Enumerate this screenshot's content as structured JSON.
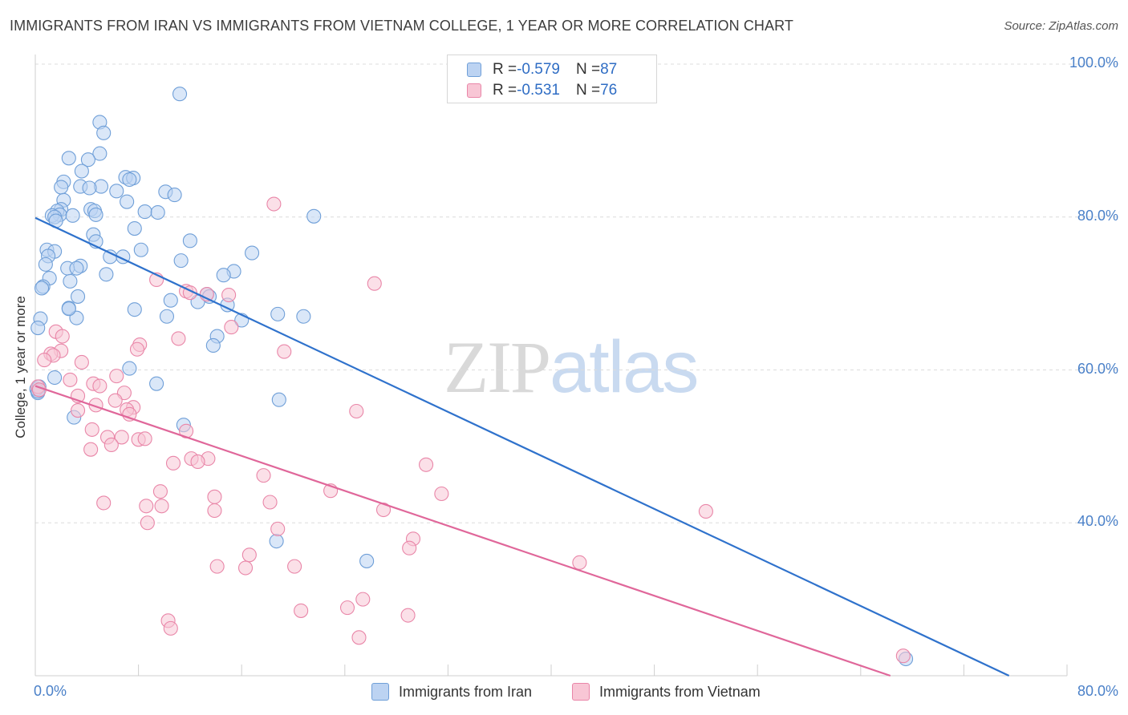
{
  "header": {
    "title": "IMMIGRANTS FROM IRAN VS IMMIGRANTS FROM VIETNAM COLLEGE, 1 YEAR OR MORE CORRELATION CHART",
    "source": "Source: ZipAtlas.com"
  },
  "watermark": {
    "zip": "ZIP",
    "atlas": "atlas"
  },
  "stats_legend": {
    "rows": [
      {
        "r_label": "R = ",
        "r_value": "-0.579",
        "n_label": "N = ",
        "n_value": "87",
        "color": "#6f9fd8",
        "fill": "#bcd3f2"
      },
      {
        "r_label": "R = ",
        "r_value": "-0.531",
        "n_label": "N = ",
        "n_value": "76",
        "color": "#e986a8",
        "fill": "#f8c6d5"
      }
    ]
  },
  "chart_data": {
    "type": "scatter",
    "ylabel": "College, 1 year or more",
    "xlim": [
      0,
      80
    ],
    "ylim": [
      20,
      100
    ],
    "x_tick_labels": [
      "0.0%",
      "80.0%"
    ],
    "y_ticks": [
      {
        "value": 100,
        "label": "100.0%"
      },
      {
        "value": 80,
        "label": "80.0%"
      },
      {
        "value": 60,
        "label": "60.0%"
      },
      {
        "value": 40,
        "label": "40.0%"
      }
    ],
    "grid": "horizontal dashed",
    "legend_placement": "bottom-center",
    "series": [
      {
        "name": "Immigrants from Iran",
        "color": "#6f9fd8",
        "fill": "#bcd3f2",
        "trend": {
          "x": [
            0,
            75.5
          ],
          "y": [
            79.9,
            20.0
          ]
        },
        "points": [
          [
            11.2,
            96.1
          ],
          [
            5.0,
            92.4
          ],
          [
            5.3,
            91.0
          ],
          [
            5.0,
            88.3
          ],
          [
            2.6,
            87.7
          ],
          [
            4.1,
            87.5
          ],
          [
            3.6,
            86.0
          ],
          [
            7.0,
            85.2
          ],
          [
            7.6,
            85.1
          ],
          [
            7.3,
            84.9
          ],
          [
            2.2,
            84.6
          ],
          [
            5.1,
            84.0
          ],
          [
            3.5,
            84.0
          ],
          [
            4.2,
            83.8
          ],
          [
            2.0,
            83.9
          ],
          [
            6.3,
            83.4
          ],
          [
            10.1,
            83.3
          ],
          [
            10.8,
            82.9
          ],
          [
            2.2,
            82.2
          ],
          [
            7.1,
            82.0
          ],
          [
            4.3,
            81.0
          ],
          [
            2.0,
            81.0
          ],
          [
            1.7,
            80.8
          ],
          [
            4.6,
            80.8
          ],
          [
            8.5,
            80.7
          ],
          [
            9.5,
            80.6
          ],
          [
            1.9,
            80.3
          ],
          [
            2.9,
            80.2
          ],
          [
            4.7,
            80.3
          ],
          [
            1.3,
            80.2
          ],
          [
            1.5,
            80.0
          ],
          [
            21.6,
            80.1
          ],
          [
            1.6,
            79.5
          ],
          [
            7.7,
            78.5
          ],
          [
            4.5,
            77.7
          ],
          [
            12.0,
            76.9
          ],
          [
            4.7,
            76.8
          ],
          [
            0.9,
            75.7
          ],
          [
            1.5,
            75.5
          ],
          [
            8.2,
            75.7
          ],
          [
            16.8,
            75.3
          ],
          [
            1.0,
            74.9
          ],
          [
            5.8,
            74.8
          ],
          [
            6.8,
            74.8
          ],
          [
            11.3,
            74.3
          ],
          [
            0.8,
            73.8
          ],
          [
            3.5,
            73.6
          ],
          [
            2.5,
            73.3
          ],
          [
            3.2,
            73.3
          ],
          [
            15.4,
            72.9
          ],
          [
            14.6,
            72.4
          ],
          [
            5.5,
            72.5
          ],
          [
            1.1,
            72.0
          ],
          [
            2.7,
            71.6
          ],
          [
            0.6,
            70.9
          ],
          [
            0.5,
            70.7
          ],
          [
            13.3,
            69.9
          ],
          [
            3.3,
            69.6
          ],
          [
            10.5,
            69.1
          ],
          [
            12.6,
            68.9
          ],
          [
            14.9,
            68.5
          ],
          [
            7.7,
            67.9
          ],
          [
            2.6,
            68.1
          ],
          [
            18.8,
            67.3
          ],
          [
            20.8,
            67.0
          ],
          [
            10.2,
            67.0
          ],
          [
            3.2,
            66.8
          ],
          [
            0.4,
            66.7
          ],
          [
            16.0,
            66.5
          ],
          [
            0.2,
            65.5
          ],
          [
            14.1,
            64.4
          ],
          [
            13.8,
            63.2
          ],
          [
            7.3,
            60.2
          ],
          [
            1.5,
            59.0
          ],
          [
            9.4,
            58.2
          ],
          [
            0.2,
            57.0
          ],
          [
            18.9,
            56.1
          ],
          [
            3.0,
            53.8
          ],
          [
            11.5,
            52.8
          ],
          [
            18.7,
            37.6
          ],
          [
            25.7,
            35.0
          ],
          [
            67.5,
            22.2
          ],
          [
            0.1,
            57.5
          ],
          [
            0.3,
            57.8
          ],
          [
            0.2,
            57.2
          ],
          [
            2.6,
            68.0
          ],
          [
            13.5,
            69.6
          ]
        ]
      },
      {
        "name": "Immigrants from Vietnam",
        "color": "#e986a8",
        "fill": "#f8c6d5",
        "trend": {
          "x": [
            0,
            66.3
          ],
          "y": [
            57.9,
            20.0
          ]
        },
        "points": [
          [
            18.5,
            81.7
          ],
          [
            9.4,
            71.8
          ],
          [
            26.3,
            71.3
          ],
          [
            11.7,
            70.3
          ],
          [
            13.3,
            69.9
          ],
          [
            15.2,
            65.6
          ],
          [
            1.6,
            65.0
          ],
          [
            2.1,
            64.4
          ],
          [
            11.1,
            64.1
          ],
          [
            8.1,
            63.3
          ],
          [
            2.0,
            62.5
          ],
          [
            7.9,
            62.7
          ],
          [
            19.3,
            62.4
          ],
          [
            1.2,
            62.1
          ],
          [
            1.4,
            61.9
          ],
          [
            0.7,
            61.3
          ],
          [
            3.6,
            61.0
          ],
          [
            6.3,
            59.2
          ],
          [
            2.7,
            58.7
          ],
          [
            4.5,
            58.2
          ],
          [
            5.0,
            57.9
          ],
          [
            0.2,
            57.8
          ],
          [
            0.3,
            57.4
          ],
          [
            6.9,
            57.0
          ],
          [
            3.3,
            56.6
          ],
          [
            6.2,
            56.0
          ],
          [
            7.6,
            55.1
          ],
          [
            4.7,
            55.4
          ],
          [
            7.1,
            54.8
          ],
          [
            24.9,
            54.6
          ],
          [
            3.3,
            54.7
          ],
          [
            7.3,
            54.2
          ],
          [
            11.7,
            52.0
          ],
          [
            4.4,
            52.2
          ],
          [
            5.6,
            51.2
          ],
          [
            6.7,
            51.2
          ],
          [
            8.0,
            50.9
          ],
          [
            5.9,
            50.2
          ],
          [
            4.3,
            49.6
          ],
          [
            12.1,
            48.4
          ],
          [
            13.4,
            48.4
          ],
          [
            12.6,
            48.0
          ],
          [
            10.7,
            47.8
          ],
          [
            30.3,
            47.6
          ],
          [
            17.7,
            46.2
          ],
          [
            9.7,
            44.1
          ],
          [
            22.9,
            44.2
          ],
          [
            31.5,
            43.8
          ],
          [
            13.9,
            43.4
          ],
          [
            5.3,
            42.6
          ],
          [
            18.2,
            42.7
          ],
          [
            8.6,
            42.2
          ],
          [
            9.8,
            42.2
          ],
          [
            27.0,
            41.7
          ],
          [
            13.9,
            41.6
          ],
          [
            52.0,
            41.5
          ],
          [
            8.7,
            40.0
          ],
          [
            18.8,
            39.2
          ],
          [
            29.3,
            37.9
          ],
          [
            29.0,
            36.7
          ],
          [
            16.6,
            35.8
          ],
          [
            42.2,
            34.8
          ],
          [
            14.1,
            34.3
          ],
          [
            16.3,
            34.1
          ],
          [
            20.1,
            34.3
          ],
          [
            25.4,
            30.0
          ],
          [
            24.2,
            28.9
          ],
          [
            20.6,
            28.5
          ],
          [
            28.9,
            27.9
          ],
          [
            10.3,
            27.2
          ],
          [
            10.5,
            26.2
          ],
          [
            25.1,
            25.0
          ],
          [
            67.3,
            22.6
          ],
          [
            8.5,
            51.0
          ],
          [
            12.0,
            70.1
          ],
          [
            15.0,
            69.8
          ]
        ]
      }
    ]
  },
  "bottom_legend": {
    "items": [
      {
        "label": "Immigrants from Iran",
        "color": "#6f9fd8",
        "fill": "#bcd3f2"
      },
      {
        "label": "Immigrants from Vietnam",
        "color": "#e986a8",
        "fill": "#f8c6d5"
      }
    ]
  }
}
